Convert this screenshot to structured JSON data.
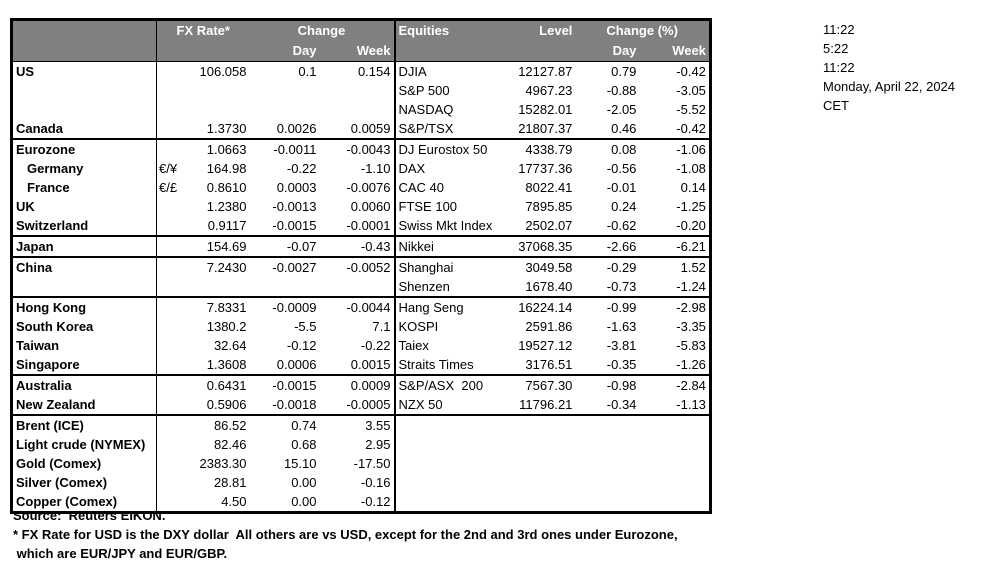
{
  "table": {
    "header": {
      "fx_rate": "FX Rate*",
      "fx_change": "Change",
      "fx_day": "Day",
      "fx_week": "Week",
      "equities": "Equities",
      "level": "Level",
      "eq_change": "Change (%)",
      "eq_day": "Day",
      "eq_week": "Week"
    },
    "rows": [
      {
        "name": "US",
        "indent": false,
        "pair": "",
        "rate": "106.058",
        "day": "0.1",
        "week": "0.154",
        "eq": "DJIA",
        "level": "12127.87",
        "eq_day": "0.79",
        "eq_week": "-0.42",
        "sep": false
      },
      {
        "name": "",
        "indent": false,
        "pair": "",
        "rate": "",
        "day": "",
        "week": "",
        "eq": "S&P 500",
        "level": "4967.23",
        "eq_day": "-0.88",
        "eq_week": "-3.05",
        "sep": false
      },
      {
        "name": "",
        "indent": false,
        "pair": "",
        "rate": "",
        "day": "",
        "week": "",
        "eq": "NASDAQ",
        "level": "15282.01",
        "eq_day": "-2.05",
        "eq_week": "-5.52",
        "sep": false
      },
      {
        "name": "Canada",
        "indent": false,
        "pair": "",
        "rate": "1.3730",
        "day": "0.0026",
        "week": "0.0059",
        "eq": "S&P/TSX",
        "level": "21807.37",
        "eq_day": "0.46",
        "eq_week": "-0.42",
        "sep": true
      },
      {
        "name": "Eurozone",
        "indent": false,
        "pair": "",
        "rate": "1.0663",
        "day": "-0.0011",
        "week": "-0.0043",
        "eq": "DJ Eurostox 50",
        "level": "4338.79",
        "eq_day": "0.08",
        "eq_week": "-1.06",
        "sep": false
      },
      {
        "name": "Germany",
        "indent": true,
        "pair": "€/¥",
        "rate": "164.98",
        "day": "-0.22",
        "week": "-1.10",
        "eq": "DAX",
        "level": "17737.36",
        "eq_day": "-0.56",
        "eq_week": "-1.08",
        "sep": false
      },
      {
        "name": "France",
        "indent": true,
        "pair": "€/£",
        "rate": "0.8610",
        "day": "0.0003",
        "week": "-0.0076",
        "eq": "CAC 40",
        "level": "8022.41",
        "eq_day": "-0.01",
        "eq_week": "0.14",
        "sep": false
      },
      {
        "name": "UK",
        "indent": false,
        "pair": "",
        "rate": "1.2380",
        "day": "-0.0013",
        "week": "0.0060",
        "eq": "FTSE 100",
        "level": "7895.85",
        "eq_day": "0.24",
        "eq_week": "-1.25",
        "sep": false
      },
      {
        "name": "Switzerland",
        "indent": false,
        "pair": "",
        "rate": "0.9117",
        "day": "-0.0015",
        "week": "-0.0001",
        "eq": "Swiss Mkt Index",
        "level": "2502.07",
        "eq_day": "-0.62",
        "eq_week": "-0.20",
        "sep": true
      },
      {
        "name": "Japan",
        "indent": false,
        "pair": "",
        "rate": "154.69",
        "day": "-0.07",
        "week": "-0.43",
        "eq": "Nikkei",
        "level": "37068.35",
        "eq_day": "-2.66",
        "eq_week": "-6.21",
        "sep": true
      },
      {
        "name": "China",
        "indent": false,
        "pair": "",
        "rate": "7.2430",
        "day": "-0.0027",
        "week": "-0.0052",
        "eq": "Shanghai",
        "level": "3049.58",
        "eq_day": "-0.29",
        "eq_week": "1.52",
        "sep": false
      },
      {
        "name": "",
        "indent": false,
        "pair": "",
        "rate": "",
        "day": "",
        "week": "",
        "eq": "Shenzen",
        "level": "1678.40",
        "eq_day": "-0.73",
        "eq_week": "-1.24",
        "sep": true
      },
      {
        "name": "Hong Kong",
        "indent": false,
        "pair": "",
        "rate": "7.8331",
        "day": "-0.0009",
        "week": "-0.0044",
        "eq": "Hang Seng",
        "level": "16224.14",
        "eq_day": "-0.99",
        "eq_week": "-2.98",
        "sep": false
      },
      {
        "name": "South Korea",
        "indent": false,
        "pair": "",
        "rate": "1380.2",
        "day": "-5.5",
        "week": "7.1",
        "eq": "KOSPI",
        "level": "2591.86",
        "eq_day": "-1.63",
        "eq_week": "-3.35",
        "sep": false
      },
      {
        "name": "Taiwan",
        "indent": false,
        "pair": "",
        "rate": "32.64",
        "day": "-0.12",
        "week": "-0.22",
        "eq": "Taiex",
        "level": "19527.12",
        "eq_day": "-3.81",
        "eq_week": "-5.83",
        "sep": false
      },
      {
        "name": "Singapore",
        "indent": false,
        "pair": "",
        "rate": "1.3608",
        "day": "0.0006",
        "week": "0.0015",
        "eq": "Straits Times",
        "level": "3176.51",
        "eq_day": "-0.35",
        "eq_week": "-1.26",
        "sep": true
      },
      {
        "name": "Australia",
        "indent": false,
        "pair": "",
        "rate": "0.6431",
        "day": "-0.0015",
        "week": "0.0009",
        "eq": "S&P/ASX  200",
        "level": "7567.30",
        "eq_day": "-0.98",
        "eq_week": "-2.84",
        "sep": false
      },
      {
        "name": "New Zealand",
        "indent": false,
        "pair": "",
        "rate": "0.5906",
        "day": "-0.0018",
        "week": "-0.0005",
        "eq": "NZX 50",
        "level": "11796.21",
        "eq_day": "-0.34",
        "eq_week": "-1.13",
        "sep": true
      },
      {
        "name": "Brent (ICE)",
        "indent": false,
        "pair": "",
        "rate": "86.52",
        "day": "0.74",
        "week": "3.55",
        "eq": "",
        "level": "",
        "eq_day": "",
        "eq_week": "",
        "sep": false
      },
      {
        "name": "Light crude (NYMEX)",
        "indent": false,
        "pair": "",
        "rate": "82.46",
        "day": "0.68",
        "week": "2.95",
        "eq": "",
        "level": "",
        "eq_day": "",
        "eq_week": "",
        "sep": false
      },
      {
        "name": "Gold (Comex)",
        "indent": false,
        "pair": "",
        "rate": "2383.30",
        "day": "15.10",
        "week": "-17.50",
        "eq": "",
        "level": "",
        "eq_day": "",
        "eq_week": "",
        "sep": false
      },
      {
        "name": "Silver (Comex)",
        "indent": false,
        "pair": "",
        "rate": "28.81",
        "day": "0.00",
        "week": "-0.16",
        "eq": "",
        "level": "",
        "eq_day": "",
        "eq_week": "",
        "sep": false
      },
      {
        "name": "Copper (Comex)",
        "indent": false,
        "pair": "",
        "rate": "4.50",
        "day": "0.00",
        "week": "-0.12",
        "eq": "",
        "level": "",
        "eq_day": "",
        "eq_week": "",
        "sep": false
      }
    ]
  },
  "timestamps": [
    "11:22",
    "5:22",
    "11:22",
    "Monday, April 22, 2024",
    "CET"
  ],
  "footer": {
    "source": "Source:  Reuters EIKON.",
    "note_line1": "* FX Rate for USD is the DXY dollar  All others are vs USD, except for the 2nd and 3rd ones under Eurozone,",
    "note_line2": " which are EUR/JPY and EUR/GBP."
  },
  "colors": {
    "header_bg": "#808080",
    "header_text": "#ffffff",
    "border": "#000000",
    "text": "#000000"
  }
}
